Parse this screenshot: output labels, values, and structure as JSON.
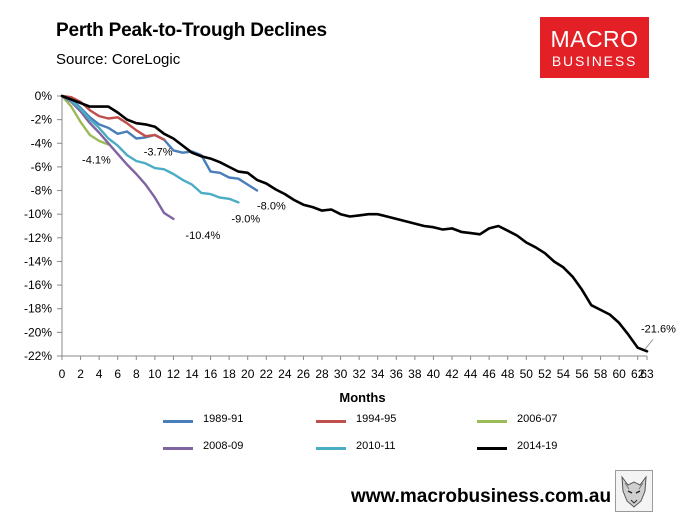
{
  "header": {
    "title": "Perth Peak-to-Trough Declines",
    "source": "Source: CoreLogic"
  },
  "logo": {
    "line1": "MACRO",
    "line2": "BUSINESS",
    "color": "#e32026"
  },
  "footer": {
    "website": "www.macrobusiness.com.au"
  },
  "chart_data": {
    "type": "line",
    "title": "Perth Peak-to-Trough Declines",
    "xlabel": "Months",
    "ylabel": "",
    "xlim": [
      0,
      63
    ],
    "ylim": [
      -22,
      0
    ],
    "x_ticks": [
      0,
      2,
      4,
      6,
      8,
      10,
      12,
      14,
      16,
      18,
      20,
      22,
      24,
      26,
      28,
      30,
      32,
      34,
      36,
      38,
      40,
      42,
      44,
      46,
      48,
      50,
      52,
      54,
      56,
      58,
      60,
      62,
      63
    ],
    "x_tick_labels": [
      "0",
      "2",
      "4",
      "6",
      "8",
      "10",
      "12",
      "14",
      "16",
      "18",
      "20",
      "22",
      "24",
      "26",
      "28",
      "30",
      "32",
      "34",
      "36",
      "38",
      "40",
      "42",
      "44",
      "46",
      "48",
      "50",
      "52",
      "54",
      "56",
      "58",
      "60",
      "62",
      "63"
    ],
    "y_ticks": [
      0,
      -2,
      -4,
      -6,
      -8,
      -10,
      -12,
      -14,
      -16,
      -18,
      -20,
      -22
    ],
    "y_tick_labels": [
      "0%",
      "-2%",
      "-4%",
      "-6%",
      "-8%",
      "-10%",
      "-12%",
      "-14%",
      "-16%",
      "-18%",
      "-20%",
      "-22%"
    ],
    "grid": false,
    "legend_position": "bottom",
    "series": [
      {
        "name": "1989-91",
        "color": "#4a7ebb",
        "values": [
          0,
          -0.3,
          -1.0,
          -1.8,
          -2.4,
          -2.7,
          -3.2,
          -3.0,
          -3.6,
          -3.5,
          -3.3,
          -3.7,
          -4.6,
          -4.8,
          -4.7,
          -5.0,
          -6.4,
          -6.5,
          -6.9,
          -7.0,
          -7.5,
          -8.0
        ],
        "label": "-8.0%"
      },
      {
        "name": "1994-95",
        "color": "#c0504d",
        "values": [
          0,
          -0.1,
          -0.5,
          -1.2,
          -1.7,
          -1.9,
          -1.8,
          -2.3,
          -2.9,
          -3.4,
          -3.3,
          -3.7
        ],
        "label": "-3.7%"
      },
      {
        "name": "2006-07",
        "color": "#9bbb59",
        "values": [
          0,
          -0.9,
          -2.2,
          -3.3,
          -3.8,
          -4.1
        ],
        "label": "-4.1%"
      },
      {
        "name": "2008-09",
        "color": "#8064a2",
        "values": [
          0,
          -0.5,
          -1.3,
          -2.3,
          -3.1,
          -4.0,
          -4.9,
          -5.8,
          -6.6,
          -7.5,
          -8.6,
          -9.9,
          -10.4
        ],
        "label": "-10.4%"
      },
      {
        "name": "2010-11",
        "color": "#4bacc6",
        "values": [
          0,
          -0.4,
          -1.1,
          -2.0,
          -2.7,
          -3.6,
          -4.2,
          -5.0,
          -5.5,
          -5.7,
          -6.1,
          -6.2,
          -6.6,
          -7.1,
          -7.5,
          -8.2,
          -8.3,
          -8.6,
          -8.7,
          -9.0
        ],
        "label": "-9.0%"
      },
      {
        "name": "2014-19",
        "color": "#000000",
        "values": [
          0,
          -0.3,
          -0.6,
          -0.9,
          -0.9,
          -0.9,
          -1.4,
          -2.0,
          -2.3,
          -2.4,
          -2.6,
          -3.2,
          -3.6,
          -4.2,
          -4.8,
          -5.1,
          -5.3,
          -5.6,
          -6.0,
          -6.4,
          -6.5,
          -7.1,
          -7.4,
          -7.9,
          -8.3,
          -8.8,
          -9.2,
          -9.4,
          -9.7,
          -9.6,
          -10.0,
          -10.2,
          -10.1,
          -10.0,
          -10.0,
          -10.2,
          -10.4,
          -10.6,
          -10.8,
          -11.0,
          -11.1,
          -11.3,
          -11.2,
          -11.5,
          -11.6,
          -11.7,
          -11.2,
          -11.0,
          -11.4,
          -11.8,
          -12.4,
          -12.8,
          -13.3,
          -14.0,
          -14.5,
          -15.3,
          -16.4,
          -17.7,
          -18.1,
          -18.5,
          -19.2,
          -20.2,
          -21.3,
          -21.6
        ],
        "label": "-21.6%"
      }
    ]
  }
}
